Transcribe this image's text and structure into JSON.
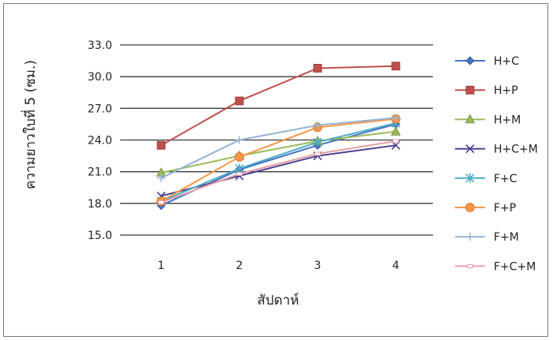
{
  "chart_data": {
    "type": "line",
    "title": "",
    "xlabel": "สัปดาห์",
    "ylabel": "ความยาวใบที่ 5 (ซม.)",
    "x": [
      1,
      2,
      3,
      4
    ],
    "ylim": [
      15.0,
      33.0
    ],
    "yticks": [
      "15.0",
      "18.0",
      "21.0",
      "24.0",
      "27.0",
      "30.0",
      "33.0"
    ],
    "xticks": [
      "1",
      "2",
      "3",
      "4"
    ],
    "grid": "horizontal",
    "legend_position": "right",
    "series": [
      {
        "name": "H+C",
        "values": [
          17.8,
          21.2,
          23.5,
          25.5
        ],
        "color": "#4472c4",
        "marker": "diamond"
      },
      {
        "name": "H+P",
        "values": [
          23.5,
          27.7,
          30.8,
          31.0
        ],
        "color": "#c0504d",
        "marker": "square"
      },
      {
        "name": "H+M",
        "values": [
          20.9,
          22.5,
          23.9,
          24.8
        ],
        "color": "#9bbb59",
        "marker": "triangle"
      },
      {
        "name": "H+C+M",
        "values": [
          18.7,
          20.6,
          22.5,
          23.5
        ],
        "color": "#4b3f8f",
        "marker": "x"
      },
      {
        "name": "F+C",
        "values": [
          18.2,
          21.3,
          23.8,
          25.6
        ],
        "color": "#4bacc6",
        "marker": "star"
      },
      {
        "name": "F+P",
        "values": [
          18.2,
          22.4,
          25.2,
          26.0
        ],
        "color": "#f79646",
        "marker": "circle"
      },
      {
        "name": "F+M",
        "values": [
          20.4,
          24.0,
          25.4,
          26.1
        ],
        "color": "#95b3d7",
        "marker": "plus"
      },
      {
        "name": "F+C+M",
        "values": [
          18.1,
          20.8,
          22.7,
          23.9
        ],
        "color": "#e6a0a8",
        "marker": "dash"
      }
    ]
  }
}
